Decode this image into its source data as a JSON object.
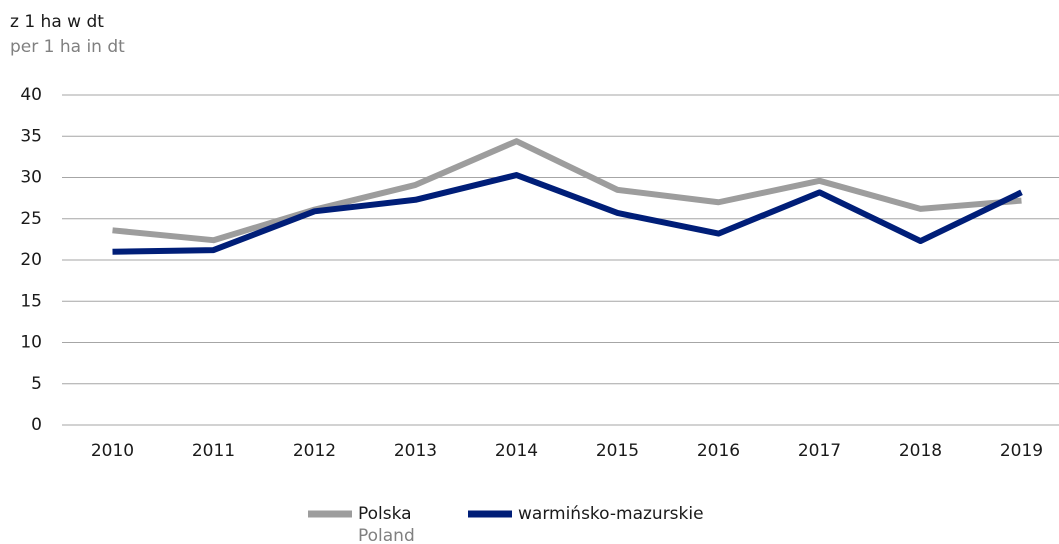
{
  "chart_data": {
    "type": "line",
    "y_label": "z 1 ha w dt",
    "y_label_en": "per 1 ha in dt",
    "categories": [
      "2010",
      "2011",
      "2012",
      "2013",
      "2014",
      "2015",
      "2016",
      "2017",
      "2018",
      "2019"
    ],
    "series": [
      {
        "name": "Polska",
        "name_en": "Poland",
        "color": "#9d9d9d",
        "values": [
          23.6,
          22.4,
          26.1,
          29.1,
          34.4,
          28.5,
          27.0,
          29.6,
          26.2,
          27.2
        ]
      },
      {
        "name": "warmińsko-mazurskie",
        "color": "#001e78",
        "values": [
          21.0,
          21.2,
          25.9,
          27.3,
          30.3,
          25.7,
          23.2,
          28.2,
          22.3,
          28.2
        ]
      }
    ],
    "ylim": [
      0,
      40
    ],
    "yticks": [
      0,
      5,
      10,
      15,
      20,
      25,
      30,
      35,
      40
    ],
    "grid": true
  }
}
